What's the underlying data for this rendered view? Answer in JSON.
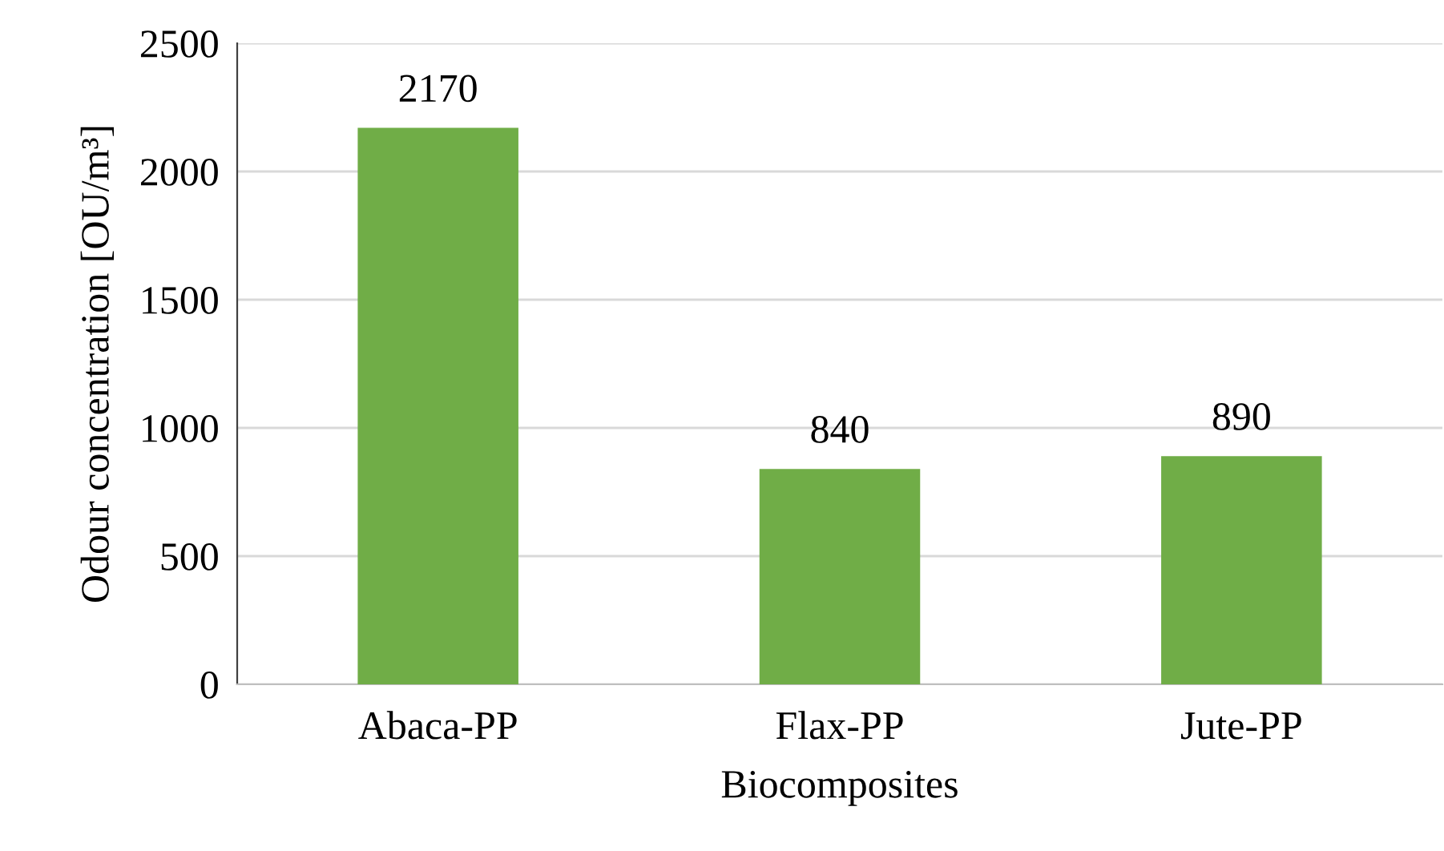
{
  "chart_data": {
    "type": "bar",
    "xlabel": "Biocomposites",
    "ylabel": "Odour concentration [OU/m³]",
    "categories": [
      "Abaca-PP",
      "Flax-PP",
      "Jute-PP"
    ],
    "values": [
      2170,
      840,
      890
    ],
    "color": "#70ad47",
    "ylim": [
      0,
      2500
    ],
    "yticks": [
      0,
      500,
      1000,
      1500,
      2000,
      2500
    ],
    "grid": "y",
    "data_labels": true
  }
}
